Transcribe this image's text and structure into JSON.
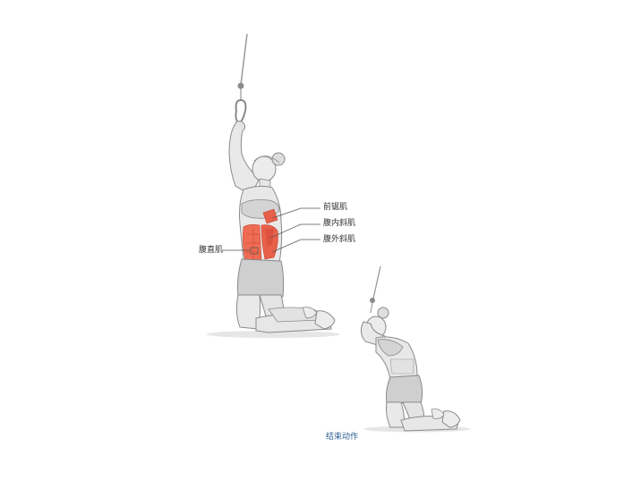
{
  "labels": {
    "serratus": "前锯肌",
    "internal_oblique": "腹内斜肌",
    "external_oblique": "腹外斜肌",
    "rectus_abdominis": "腹直肌"
  },
  "caption": "结束动作",
  "colors": {
    "muscle": "#e8604a",
    "muscle_dark": "#c8432f",
    "skin": "#e9e9e9",
    "skin_shade": "#c9c9c9",
    "outline": "#8a8a8a",
    "cable": "#9a9a9a",
    "caption": "#2f5f93"
  }
}
